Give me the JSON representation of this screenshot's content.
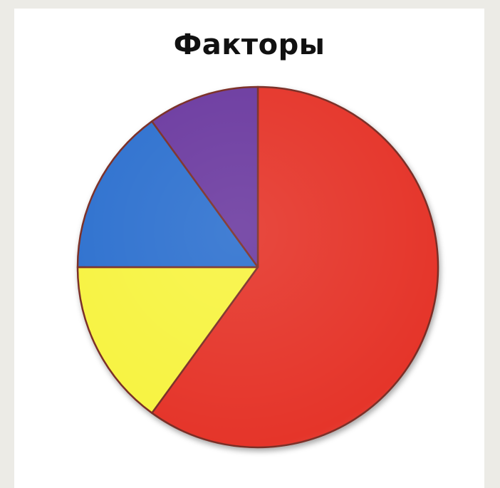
{
  "chart_data": {
    "type": "pie",
    "title": "Факторы",
    "slices": [
      {
        "value": 60,
        "color": "#e5352a"
      },
      {
        "value": 15,
        "color": "#f7f343"
      },
      {
        "value": 15,
        "color": "#2f71cf"
      },
      {
        "value": 10,
        "color": "#6c3aa0"
      }
    ],
    "start_angle_deg": -90,
    "direction": "clockwise",
    "legend": "none",
    "data_labels": "none"
  },
  "colors": {
    "page_background": "#ecebe6",
    "card_background": "#ffffff",
    "slice_border": "#7a2e26"
  }
}
